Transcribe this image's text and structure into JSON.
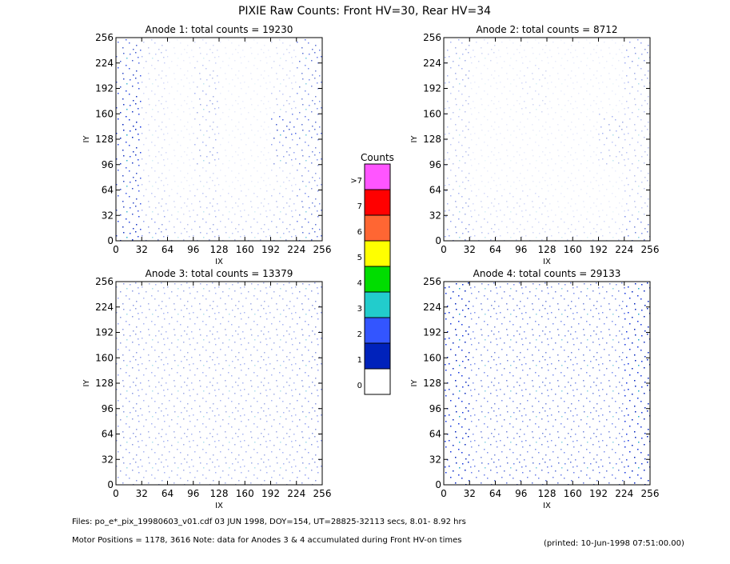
{
  "title": "PIXIE Raw Counts:  Front HV=30, Rear HV=34",
  "chart_data": [
    {
      "type": "heatmap",
      "title": "Anode 1: total counts = 19230",
      "xlabel": "IX",
      "ylabel": "IY",
      "xlim": [
        0,
        256
      ],
      "ylim": [
        0,
        256
      ],
      "xticks": [
        0,
        32,
        64,
        96,
        128,
        160,
        192,
        224,
        256
      ],
      "yticks": [
        0,
        32,
        64,
        96,
        128,
        160,
        192,
        224,
        256
      ],
      "density": [
        [
          40,
          15,
          5,
          10,
          5,
          5,
          10,
          35
        ],
        [
          45,
          10,
          5,
          15,
          5,
          5,
          10,
          30
        ],
        [
          50,
          10,
          5,
          20,
          5,
          5,
          15,
          30
        ],
        [
          55,
          10,
          5,
          15,
          5,
          5,
          40,
          35
        ],
        [
          50,
          10,
          5,
          20,
          5,
          5,
          25,
          30
        ],
        [
          45,
          10,
          5,
          10,
          5,
          5,
          10,
          25
        ],
        [
          45,
          15,
          10,
          15,
          10,
          10,
          15,
          30
        ],
        [
          50,
          25,
          15,
          20,
          15,
          15,
          20,
          35
        ]
      ]
    },
    {
      "type": "heatmap",
      "title": "Anode 2: total counts = 8712",
      "xlabel": "IX",
      "ylabel": "IY",
      "xlim": [
        0,
        256
      ],
      "ylim": [
        0,
        256
      ],
      "xticks": [
        0,
        32,
        64,
        96,
        128,
        160,
        192,
        224,
        256
      ],
      "yticks": [
        0,
        32,
        64,
        96,
        128,
        160,
        192,
        224,
        256
      ],
      "density": [
        [
          20,
          10,
          5,
          5,
          5,
          5,
          5,
          25
        ],
        [
          20,
          5,
          5,
          10,
          5,
          5,
          5,
          20
        ],
        [
          15,
          5,
          5,
          10,
          5,
          5,
          5,
          15
        ],
        [
          15,
          5,
          5,
          5,
          5,
          5,
          20,
          15
        ],
        [
          15,
          5,
          5,
          5,
          5,
          5,
          15,
          15
        ],
        [
          15,
          5,
          5,
          5,
          5,
          5,
          5,
          15
        ],
        [
          20,
          10,
          10,
          10,
          5,
          5,
          5,
          15
        ],
        [
          25,
          15,
          10,
          10,
          10,
          10,
          10,
          30
        ]
      ]
    },
    {
      "type": "heatmap",
      "title": "Anode 3: total counts = 13379",
      "xlabel": "IX",
      "ylabel": "IY",
      "xlim": [
        0,
        256
      ],
      "ylim": [
        0,
        256
      ],
      "xticks": [
        0,
        32,
        64,
        96,
        128,
        160,
        192,
        224,
        256
      ],
      "yticks": [
        0,
        32,
        64,
        96,
        128,
        160,
        192,
        224,
        256
      ],
      "density": [
        [
          25,
          20,
          20,
          20,
          20,
          20,
          20,
          25
        ],
        [
          25,
          20,
          20,
          20,
          20,
          20,
          20,
          25
        ],
        [
          25,
          20,
          20,
          20,
          20,
          20,
          20,
          25
        ],
        [
          25,
          20,
          20,
          20,
          20,
          20,
          20,
          25
        ],
        [
          25,
          20,
          20,
          20,
          20,
          20,
          20,
          25
        ],
        [
          25,
          20,
          20,
          20,
          20,
          20,
          20,
          25
        ],
        [
          25,
          20,
          20,
          20,
          20,
          20,
          20,
          25
        ],
        [
          25,
          20,
          20,
          20,
          20,
          20,
          20,
          25
        ]
      ]
    },
    {
      "type": "heatmap",
      "title": "Anode 4: total counts = 29133",
      "xlabel": "IX",
      "ylabel": "IY",
      "xlim": [
        0,
        256
      ],
      "ylim": [
        0,
        256
      ],
      "xticks": [
        0,
        32,
        64,
        96,
        128,
        160,
        192,
        224,
        256
      ],
      "yticks": [
        0,
        32,
        64,
        96,
        128,
        160,
        192,
        224,
        256
      ],
      "density": [
        [
          55,
          30,
          30,
          30,
          30,
          30,
          30,
          55
        ],
        [
          55,
          30,
          30,
          30,
          30,
          30,
          30,
          55
        ],
        [
          55,
          30,
          30,
          30,
          30,
          30,
          30,
          55
        ],
        [
          55,
          30,
          30,
          30,
          30,
          30,
          30,
          55
        ],
        [
          55,
          30,
          30,
          30,
          30,
          30,
          30,
          55
        ],
        [
          55,
          30,
          30,
          30,
          30,
          30,
          30,
          55
        ],
        [
          55,
          30,
          30,
          30,
          30,
          30,
          30,
          55
        ],
        [
          55,
          35,
          35,
          35,
          35,
          35,
          35,
          55
        ]
      ]
    }
  ],
  "colorbar": {
    "title": "Counts",
    "levels": [
      {
        "label": ">7",
        "color": "#ff55ff"
      },
      {
        "label": "7",
        "color": "#ff0000"
      },
      {
        "label": "6",
        "color": "#ff6633"
      },
      {
        "label": "5",
        "color": "#ffff00"
      },
      {
        "label": "4",
        "color": "#00dd00"
      },
      {
        "label": "3",
        "color": "#22cccc"
      },
      {
        "label": "2",
        "color": "#3355ff"
      },
      {
        "label": "1",
        "color": "#0022bb"
      },
      {
        "label": "0",
        "color": "#ffffff"
      }
    ]
  },
  "footer": [
    "Files: po_e*_pix_19980603_v01.cdf    03 JUN 1998, DOY=154, UT=28825-32113 secs,  8.01- 8.92 hrs",
    "Motor Positions = 1178, 3616   Note: data for Anodes 3 & 4 accumulated during Front HV-on times"
  ],
  "printed": "(printed: 10-Jun-1998 07:51:00.00)"
}
